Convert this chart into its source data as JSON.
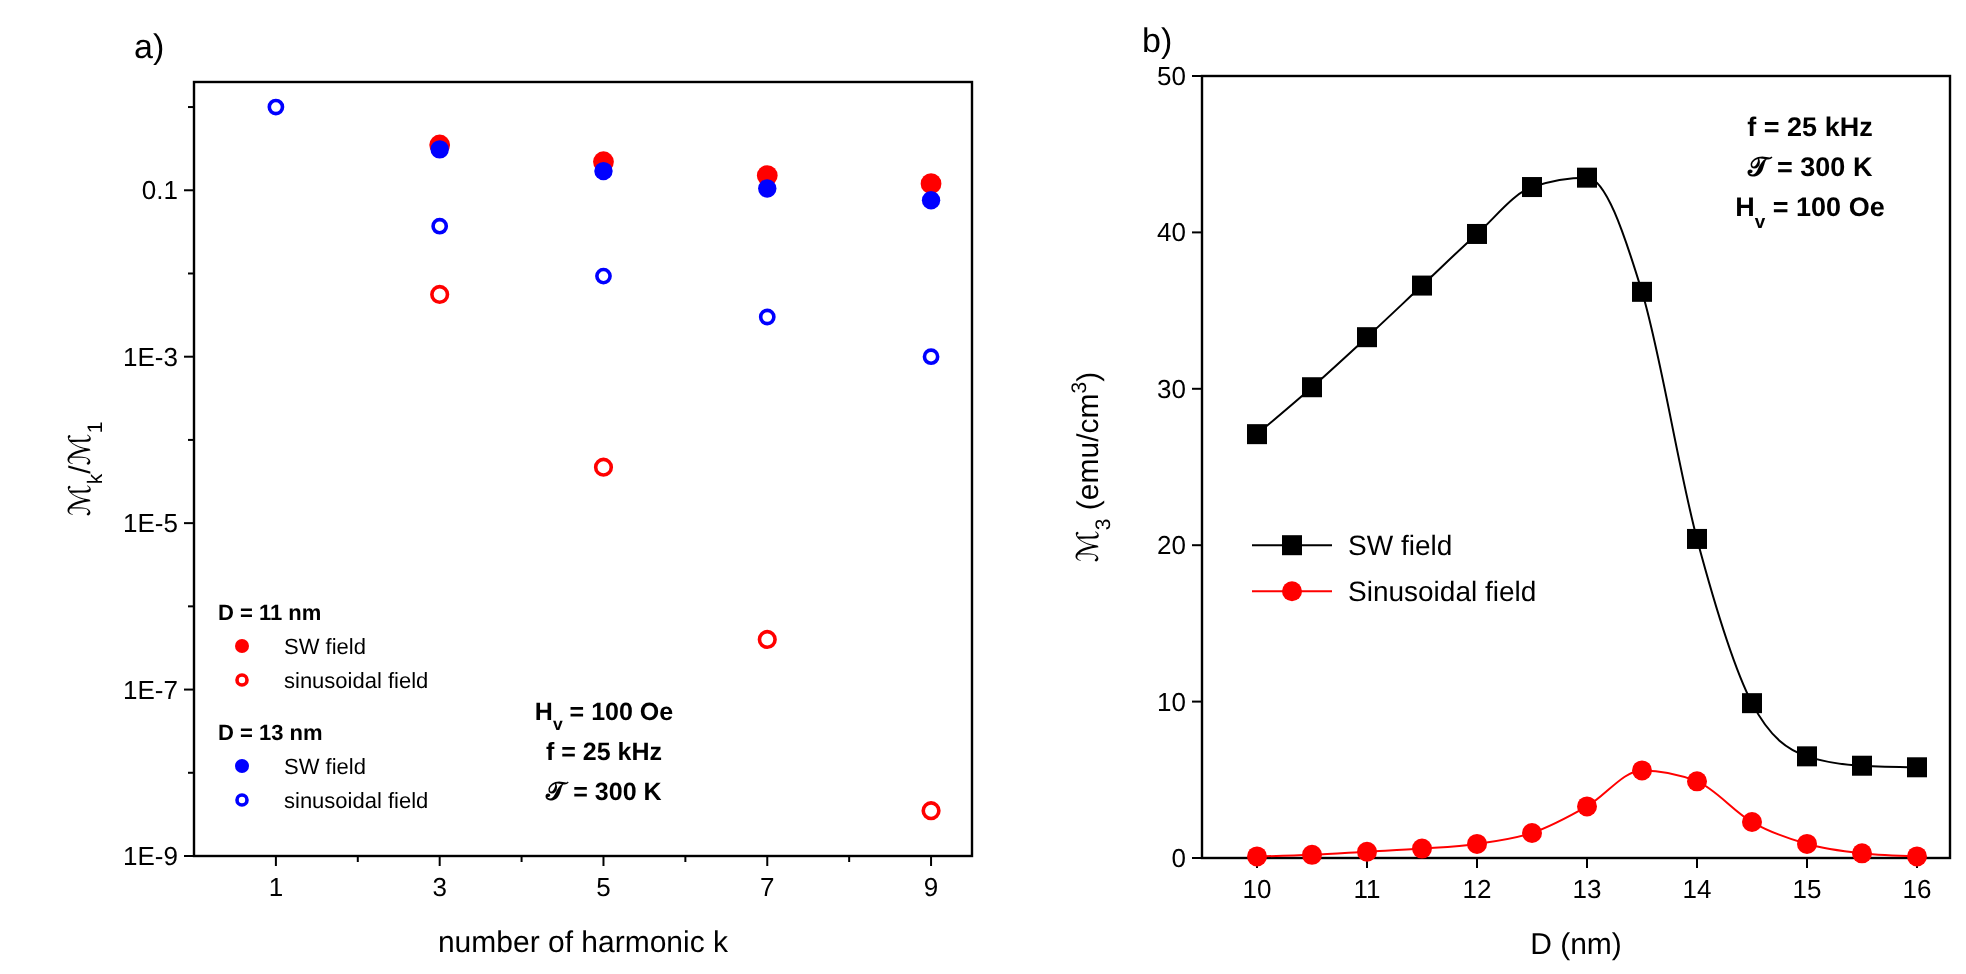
{
  "chart_data": [
    {
      "type": "scatter",
      "title": "a)",
      "xlabel": "number of harmonic k",
      "ylabel": "ℳ$_{k}$/ℳ$_{1}$",
      "log": "y",
      "xlim": [
        0,
        9.5
      ],
      "xticks": [
        1,
        {
          "value": 2,
          "label": null
        },
        3,
        {
          "value": 4,
          "label": null
        },
        5,
        {
          "value": 6,
          "label": null
        },
        7,
        {
          "value": 8,
          "label": null
        },
        9
      ],
      "ylim": [
        1e-09,
        2
      ],
      "yticks": [
        {
          "value": 1,
          "label": null
        },
        0.1,
        {
          "value": 0.01,
          "label": null
        },
        {
          "value": 0.001,
          "label": "1E-3"
        },
        {
          "value": 0.0001,
          "label": null
        },
        {
          "value": 1e-05,
          "label": "1E-5"
        },
        {
          "value": 1e-06,
          "label": null
        },
        {
          "value": 1e-07,
          "label": "1E-7"
        },
        {
          "value": 1e-08,
          "label": null
        },
        {
          "value": 1e-09,
          "label": "1E-9"
        }
      ],
      "marker": "circle",
      "legend": "bottom left",
      "grid": false,
      "series": [
        {
          "name": "SW field",
          "color": "#ff0000",
          "x": [
            3,
            5,
            7,
            9
          ],
          "values": [
            0.35,
            0.22,
            0.15,
            0.12
          ]
        },
        {
          "name": "sinusoidal field",
          "color": "#ff0000",
          "x": [
            3,
            5,
            7,
            9
          ],
          "values": [
            0.0056,
            4.7e-05,
            4e-07,
            3.5e-09
          ]
        },
        {
          "name": "SW field",
          "color": "#0000ff",
          "x": [
            3,
            5,
            7,
            9
          ],
          "values": [
            0.31,
            0.17,
            0.105,
            0.076
          ]
        },
        {
          "name": "sinusoidal field",
          "color": "#0000ff",
          "x": [
            1,
            3,
            5,
            7,
            9
          ],
          "values": [
            1,
            0.037,
            0.0093,
            0.003,
            0.001
          ]
        }
      ],
      "annotations": [
        "D = 11 nm",
        "D = 13 nm",
        "H$_{v}$ = 100 Oe",
        "f = 25 kHz",
        "𝒯 = 300 K"
      ]
    },
    {
      "type": "line",
      "title": "b)",
      "xlabel": "D (nm)",
      "ylabel": "ℳ$_{3}$ (emu/cm$^{3}$)",
      "xlim": [
        9.5,
        16.3
      ],
      "xticks": [
        10,
        11,
        12,
        13,
        14,
        15,
        16
      ],
      "ylim": [
        0,
        50
      ],
      "yticks": [
        0,
        10,
        20,
        30,
        40,
        50
      ],
      "legend": "left",
      "grid": false,
      "series": [
        {
          "name": "SW field",
          "color": "#000000",
          "marker": "square",
          "x": [
            10,
            10.5,
            11,
            11.5,
            12,
            12.5,
            13,
            13.5,
            14,
            14.5,
            15,
            15.5,
            16
          ],
          "values": [
            27.1,
            30.1,
            33.3,
            36.6,
            39.9,
            42.9,
            43.5,
            36.2,
            20.4,
            9.9,
            6.5,
            5.9,
            5.8
          ]
        },
        {
          "name": "Sinusoidal field",
          "color": "#ff0000",
          "marker": "circle",
          "x": [
            10,
            10.5,
            11,
            11.5,
            12,
            12.5,
            13,
            13.5,
            14,
            14.5,
            15,
            15.5,
            16
          ],
          "values": [
            0.1,
            0.2,
            0.4,
            0.6,
            0.9,
            1.6,
            3.3,
            5.6,
            4.9,
            2.3,
            0.9,
            0.3,
            0.1
          ]
        }
      ],
      "annotations": [
        "f = 25 kHz",
        "𝒯 = 300 K",
        "H$_{v}$ = 100 Oe"
      ]
    }
  ]
}
